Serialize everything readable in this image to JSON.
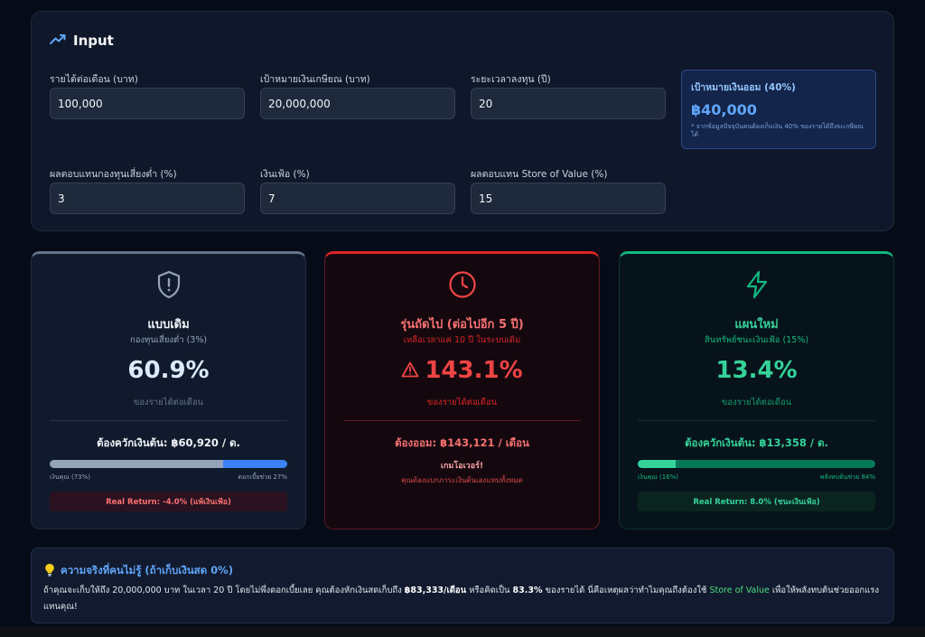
{
  "input": {
    "title": "Input",
    "fields": [
      {
        "label": "รายได้ต่อเดือน (บาท)",
        "value": "100,000"
      },
      {
        "label": "เป้าหมายเงินเกษียณ (บาท)",
        "value": "20,000,000"
      },
      {
        "label": "ระยะเวลาลงทุน (ปี)",
        "value": "20"
      },
      {
        "label": "ผลตอบแทนกองทุนเสี่ยงต่ำ (%)",
        "value": "3"
      },
      {
        "label": "เงินเฟ้อ (%)",
        "value": "7"
      },
      {
        "label": "ผลตอบแทน Store of Value (%)",
        "value": "15"
      }
    ],
    "target": {
      "title": "เป้าหมายเงินออม (40%)",
      "value": "฿40,000",
      "note": "* จากข้อมูลปัจจุบันคนต้องเก็บเงิน 40% ของรายได้ถึงจะเกษียณได้"
    }
  },
  "cards": {
    "old": {
      "icon": "shield-alert-icon",
      "title": "แบบเดิม",
      "subtitle": "กองทุนเสี่ยงต่ำ (3%)",
      "percent": "60.9%",
      "percent_label": "ของรายได้ต่อเดือน",
      "need": "ต้องควักเงินต้น: ฿60,920 / ด.",
      "bar_fraction": 0.73,
      "bar_left_label": "เงินคุณ (73%)",
      "bar_right_label": "ดอกเบี้ยช่วย 27%",
      "real_return": "Real Return: -4.0% (แพ้เงินเฟ้อ)"
    },
    "next": {
      "icon": "clock-icon",
      "title": "รุ่นถัดไป (ต่อไปอีก 5 ปี)",
      "subtitle": "เหลือเวลาแค่ 10 ปี ในระบบเดิม",
      "percent": "143.1%",
      "percent_label": "ของรายได้ต่อเดือน",
      "need": "ต้องออม: ฿143,121 / เดือน",
      "gameover_title": "เกมโอเวอร์!",
      "gameover_desc": "คุณต้องแบกภาระเงินต้นเองแทบทั้งหมด"
    },
    "new": {
      "icon": "lightning-icon",
      "title": "แผนใหม่",
      "subtitle": "สินทรัพย์ชนะเงินเฟ้อ (15%)",
      "percent": "13.4%",
      "percent_label": "ของรายได้ต่อเดือน",
      "need": "ต้องควักเงินต้น: ฿13,358 / ด.",
      "bar_fraction": 0.16,
      "bar_left_label": "เงินคุณ (16%)",
      "bar_right_label": "พลังทบต้นช่วย 84%",
      "real_return": "Real Return: 8.0% (ชนะเงินเฟ้อ)"
    }
  },
  "fact": {
    "title": "ความจริงที่คนไม่รู้ (ถ้าเก็บเงินสด 0%)",
    "t1": "ถ้าคุณจะเก็บให้ถึง 20,000,000 บาท ในเวลา 20 ปี โดยไม่พึ่งดอกเบี้ยเลย คุณต้องหักเงินสดเก็บถึง ",
    "b1": "฿83,333/เดือน",
    "t2": " หรือคิดเป็น ",
    "b2": "83.3%",
    "t3": " ของรายได้ นี่คือเหตุผลว่าทำไมคุณถึงต้องใช้ ",
    "link": "Store of Value",
    "t4": " เพื่อให้พลังทบต้นช่วยออกแรงแทนคุณ!"
  },
  "colors": {
    "old_bar_user": "#94a3b8",
    "old_bar_interest": "#3b82f6",
    "new_bar_user": "#34d399",
    "new_bar_interest": "#047857"
  }
}
